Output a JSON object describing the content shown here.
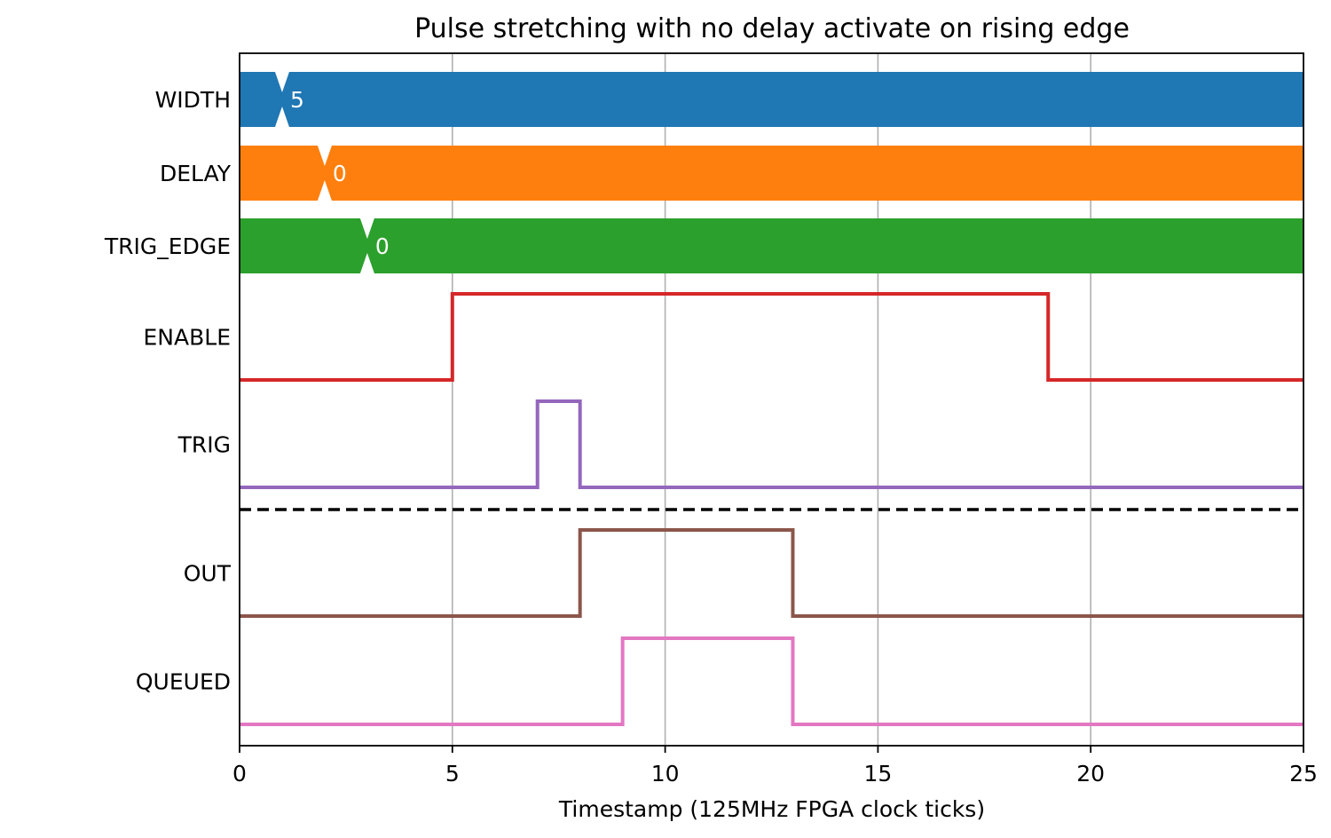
{
  "chart_data": {
    "type": "line",
    "title": "Pulse stretching with no delay activate on rising edge",
    "xlabel": "Timestamp (125MHz FPGA clock ticks)",
    "ylabel": "",
    "xlim": [
      0,
      25
    ],
    "xticks": [
      0,
      5,
      10,
      15,
      20,
      25
    ],
    "grid": "vertical",
    "separator": "dashed line between TRIG and OUT",
    "buses": [
      {
        "name": "WIDTH",
        "color": "#1f77b4",
        "transition_at": 1,
        "value_label": "5"
      },
      {
        "name": "DELAY",
        "color": "#ff7f0e",
        "transition_at": 2,
        "value_label": "0"
      },
      {
        "name": "TRIG_EDGE",
        "color": "#2ca02c",
        "transition_at": 3,
        "value_label": "0"
      }
    ],
    "series": [
      {
        "name": "ENABLE",
        "color": "#d62728",
        "x": [
          0,
          5,
          19,
          25
        ],
        "values": [
          0,
          1,
          0,
          0
        ]
      },
      {
        "name": "TRIG",
        "color": "#9467bd",
        "x": [
          0,
          7,
          8,
          25
        ],
        "values": [
          0,
          1,
          0,
          0
        ]
      },
      {
        "name": "OUT",
        "color": "#8c564b",
        "x": [
          0,
          8,
          13,
          25
        ],
        "values": [
          0,
          1,
          0,
          0
        ]
      },
      {
        "name": "QUEUED",
        "color": "#e377c2",
        "x": [
          0,
          9,
          13,
          25
        ],
        "values": [
          0,
          1,
          0,
          0
        ]
      }
    ]
  }
}
